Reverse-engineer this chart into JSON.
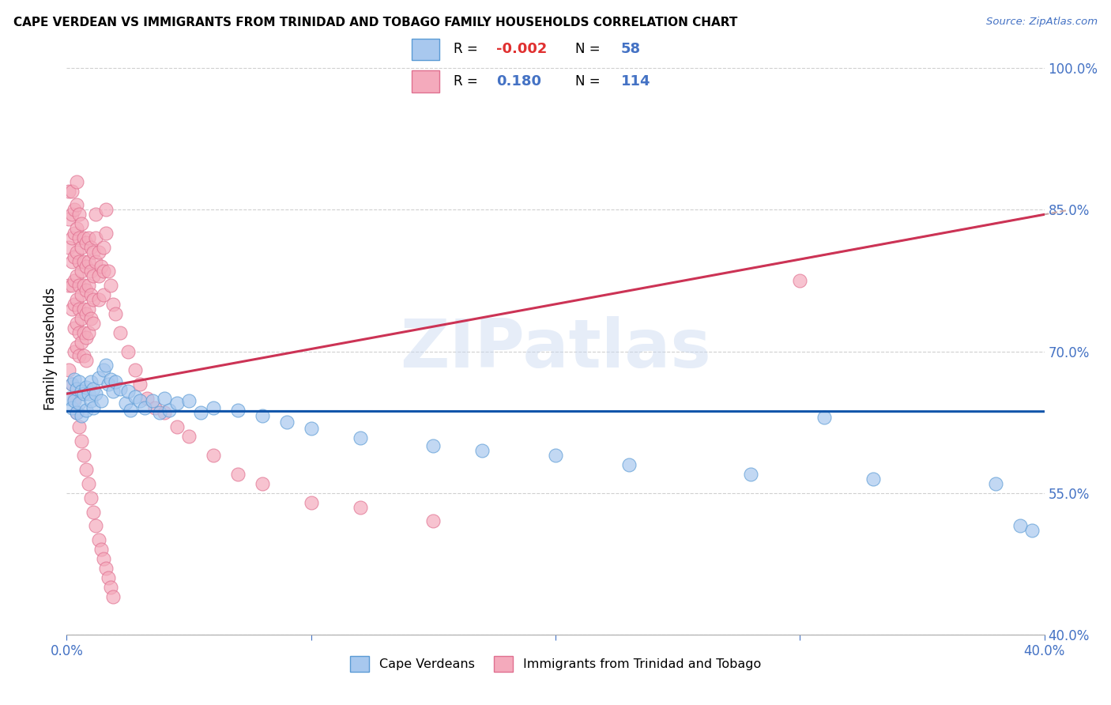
{
  "title": "CAPE VERDEAN VS IMMIGRANTS FROM TRINIDAD AND TOBAGO FAMILY HOUSEHOLDS CORRELATION CHART",
  "source": "Source: ZipAtlas.com",
  "ylabel": "Family Households",
  "x_min": 0.0,
  "x_max": 0.4,
  "y_min": 0.4,
  "y_max": 1.005,
  "x_ticks": [
    0.0,
    0.1,
    0.2,
    0.3,
    0.4
  ],
  "y_ticks": [
    0.4,
    0.55,
    0.7,
    0.85,
    1.0
  ],
  "y_tick_labels": [
    "40.0%",
    "55.0%",
    "70.0%",
    "85.0%",
    "100.0%"
  ],
  "blue_fill": "#A8C8EE",
  "blue_edge": "#5B9BD5",
  "pink_fill": "#F4AABC",
  "pink_edge": "#E07090",
  "trend_blue": "#1155AA",
  "trend_pink": "#CC3355",
  "trend_dash_color": "#C8A8A8",
  "legend_label_blue": "Cape Verdeans",
  "legend_label_pink": "Immigrants from Trinidad and Tobago",
  "watermark": "ZIPatlas",
  "blue_x": [
    0.001,
    0.002,
    0.002,
    0.003,
    0.003,
    0.004,
    0.004,
    0.005,
    0.005,
    0.006,
    0.006,
    0.007,
    0.008,
    0.008,
    0.009,
    0.01,
    0.01,
    0.011,
    0.011,
    0.012,
    0.013,
    0.014,
    0.015,
    0.016,
    0.017,
    0.018,
    0.019,
    0.02,
    0.022,
    0.024,
    0.025,
    0.026,
    0.028,
    0.03,
    0.032,
    0.035,
    0.038,
    0.04,
    0.042,
    0.045,
    0.05,
    0.055,
    0.06,
    0.07,
    0.08,
    0.09,
    0.1,
    0.12,
    0.15,
    0.17,
    0.2,
    0.23,
    0.28,
    0.31,
    0.33,
    0.38,
    0.39,
    0.395
  ],
  "blue_y": [
    0.65,
    0.665,
    0.64,
    0.67,
    0.648,
    0.66,
    0.635,
    0.668,
    0.645,
    0.658,
    0.632,
    0.655,
    0.662,
    0.638,
    0.655,
    0.668,
    0.648,
    0.66,
    0.64,
    0.655,
    0.672,
    0.648,
    0.68,
    0.685,
    0.665,
    0.67,
    0.658,
    0.668,
    0.66,
    0.645,
    0.658,
    0.638,
    0.652,
    0.648,
    0.64,
    0.648,
    0.635,
    0.65,
    0.638,
    0.645,
    0.648,
    0.635,
    0.64,
    0.638,
    0.632,
    0.625,
    0.618,
    0.608,
    0.6,
    0.595,
    0.59,
    0.58,
    0.57,
    0.63,
    0.565,
    0.56,
    0.515,
    0.51
  ],
  "pink_x": [
    0.001,
    0.001,
    0.001,
    0.001,
    0.002,
    0.002,
    0.002,
    0.002,
    0.002,
    0.002,
    0.003,
    0.003,
    0.003,
    0.003,
    0.003,
    0.003,
    0.003,
    0.004,
    0.004,
    0.004,
    0.004,
    0.004,
    0.004,
    0.004,
    0.004,
    0.005,
    0.005,
    0.005,
    0.005,
    0.005,
    0.005,
    0.005,
    0.006,
    0.006,
    0.006,
    0.006,
    0.006,
    0.006,
    0.007,
    0.007,
    0.007,
    0.007,
    0.007,
    0.007,
    0.008,
    0.008,
    0.008,
    0.008,
    0.008,
    0.008,
    0.009,
    0.009,
    0.009,
    0.009,
    0.009,
    0.01,
    0.01,
    0.01,
    0.01,
    0.011,
    0.011,
    0.011,
    0.011,
    0.012,
    0.012,
    0.012,
    0.013,
    0.013,
    0.013,
    0.014,
    0.015,
    0.015,
    0.015,
    0.016,
    0.016,
    0.017,
    0.018,
    0.019,
    0.02,
    0.022,
    0.025,
    0.028,
    0.03,
    0.033,
    0.036,
    0.04,
    0.045,
    0.05,
    0.06,
    0.07,
    0.08,
    0.1,
    0.12,
    0.15,
    0.3,
    0.001,
    0.002,
    0.003,
    0.004,
    0.005,
    0.006,
    0.007,
    0.008,
    0.009,
    0.01,
    0.011,
    0.012,
    0.013,
    0.014,
    0.015,
    0.016,
    0.017,
    0.018,
    0.019
  ],
  "pink_y": [
    0.87,
    0.84,
    0.81,
    0.77,
    0.87,
    0.845,
    0.82,
    0.795,
    0.77,
    0.745,
    0.85,
    0.825,
    0.8,
    0.775,
    0.75,
    0.725,
    0.7,
    0.88,
    0.855,
    0.83,
    0.805,
    0.78,
    0.755,
    0.73,
    0.705,
    0.845,
    0.82,
    0.795,
    0.77,
    0.745,
    0.72,
    0.695,
    0.835,
    0.81,
    0.785,
    0.76,
    0.735,
    0.71,
    0.82,
    0.795,
    0.77,
    0.745,
    0.72,
    0.695,
    0.815,
    0.79,
    0.765,
    0.74,
    0.715,
    0.69,
    0.82,
    0.795,
    0.77,
    0.745,
    0.72,
    0.81,
    0.785,
    0.76,
    0.735,
    0.805,
    0.78,
    0.755,
    0.73,
    0.845,
    0.82,
    0.795,
    0.805,
    0.78,
    0.755,
    0.79,
    0.81,
    0.785,
    0.76,
    0.85,
    0.825,
    0.785,
    0.77,
    0.75,
    0.74,
    0.72,
    0.7,
    0.68,
    0.665,
    0.65,
    0.64,
    0.635,
    0.62,
    0.61,
    0.59,
    0.57,
    0.56,
    0.54,
    0.535,
    0.52,
    0.775,
    0.68,
    0.665,
    0.65,
    0.635,
    0.62,
    0.605,
    0.59,
    0.575,
    0.56,
    0.545,
    0.53,
    0.515,
    0.5,
    0.49,
    0.48,
    0.47,
    0.46,
    0.45,
    0.44
  ]
}
